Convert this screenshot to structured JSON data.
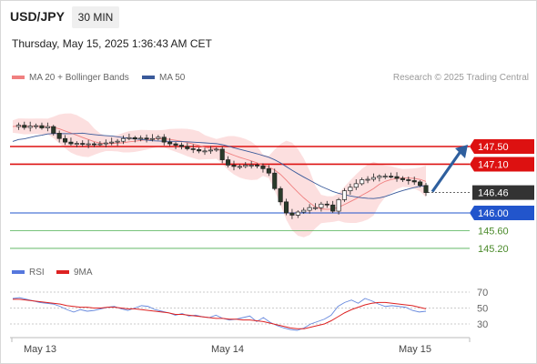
{
  "header": {
    "symbol": "USD/JPY",
    "timeframe": "30 MIN",
    "datetime": "Thursday, May 15, 2025 1:36:43 AM CET",
    "credit": "Research © 2025 Trading Central"
  },
  "legend": [
    {
      "label": "MA 20 + Bollinger Bands",
      "color": "#f08080"
    },
    {
      "label": "MA 50",
      "color": "#3a5a9a"
    }
  ],
  "rsi_legend": [
    {
      "label": "RSI",
      "color": "#5577dd"
    },
    {
      "label": "9MA",
      "color": "#dd2222"
    }
  ],
  "chart_data": [
    {
      "type": "candlestick",
      "title": "USD/JPY",
      "x_ticks": [
        "May 13",
        "May 14",
        "May 15"
      ],
      "price_path": [
        147.95,
        147.98,
        147.93,
        147.96,
        147.97,
        147.92,
        147.95,
        147.8,
        147.68,
        147.6,
        147.56,
        147.57,
        147.55,
        147.56,
        147.55,
        147.56,
        147.58,
        147.6,
        147.62,
        147.68,
        147.7,
        147.67,
        147.69,
        147.68,
        147.68,
        147.71,
        147.6,
        147.56,
        147.53,
        147.5,
        147.45,
        147.43,
        147.4,
        147.4,
        147.42,
        147.44,
        147.2,
        147.08,
        147.05,
        147.05,
        147.08,
        147.08,
        147.06,
        147.0,
        146.9,
        146.55,
        146.25,
        146.0,
        145.95,
        146.02,
        146.06,
        146.12,
        146.12,
        146.2,
        146.18,
        146.04,
        146.3,
        146.5,
        146.58,
        146.66,
        146.75,
        146.76,
        146.8,
        146.83,
        146.83,
        146.82,
        146.78,
        146.75,
        146.73,
        146.7,
        146.62,
        146.46
      ],
      "key_levels": [
        {
          "value": 147.5,
          "label": "147.50",
          "kind": "resistance-major"
        },
        {
          "value": 147.1,
          "label": "147.10",
          "kind": "resistance"
        },
        {
          "value": 146.0,
          "label": "146.00",
          "kind": "pivot"
        },
        {
          "value": 145.6,
          "label": "145.60",
          "kind": "support"
        },
        {
          "value": 145.2,
          "label": "145.20",
          "kind": "support"
        }
      ],
      "last_price": {
        "value": 146.46,
        "label": "146.46"
      },
      "forecast_arrow": {
        "from": 146.46,
        "to": 147.5
      }
    },
    {
      "type": "line",
      "title": "RSI",
      "y_ticks": [
        "70",
        "50",
        "30"
      ],
      "ylim": [
        20,
        80
      ],
      "rsi": [
        62,
        63,
        61,
        59,
        57,
        56,
        55,
        52,
        48,
        45,
        48,
        46,
        47,
        49,
        51,
        52,
        49,
        47,
        50,
        53,
        52,
        48,
        46,
        44,
        41,
        43,
        40,
        41,
        39,
        38,
        41,
        37,
        35,
        36,
        38,
        40,
        33,
        38,
        32,
        28,
        25,
        23,
        22,
        25,
        30,
        33,
        36,
        41,
        52,
        57,
        60,
        56,
        62,
        59,
        55,
        52,
        53,
        52,
        51,
        47,
        45,
        46
      ],
      "ma9": [
        61,
        61,
        60,
        59,
        58,
        57,
        56,
        55,
        53,
        52,
        51,
        51,
        50,
        50,
        51,
        51,
        50,
        49,
        49,
        48,
        47,
        46,
        45,
        44,
        42,
        42,
        41,
        40,
        39,
        38,
        37,
        37,
        36,
        36,
        35,
        35,
        34,
        33,
        31,
        29,
        27,
        25,
        24,
        24,
        26,
        28,
        30,
        34,
        39,
        44,
        48,
        51,
        54,
        56,
        57,
        57,
        56,
        55,
        54,
        53,
        51,
        49
      ]
    }
  ]
}
